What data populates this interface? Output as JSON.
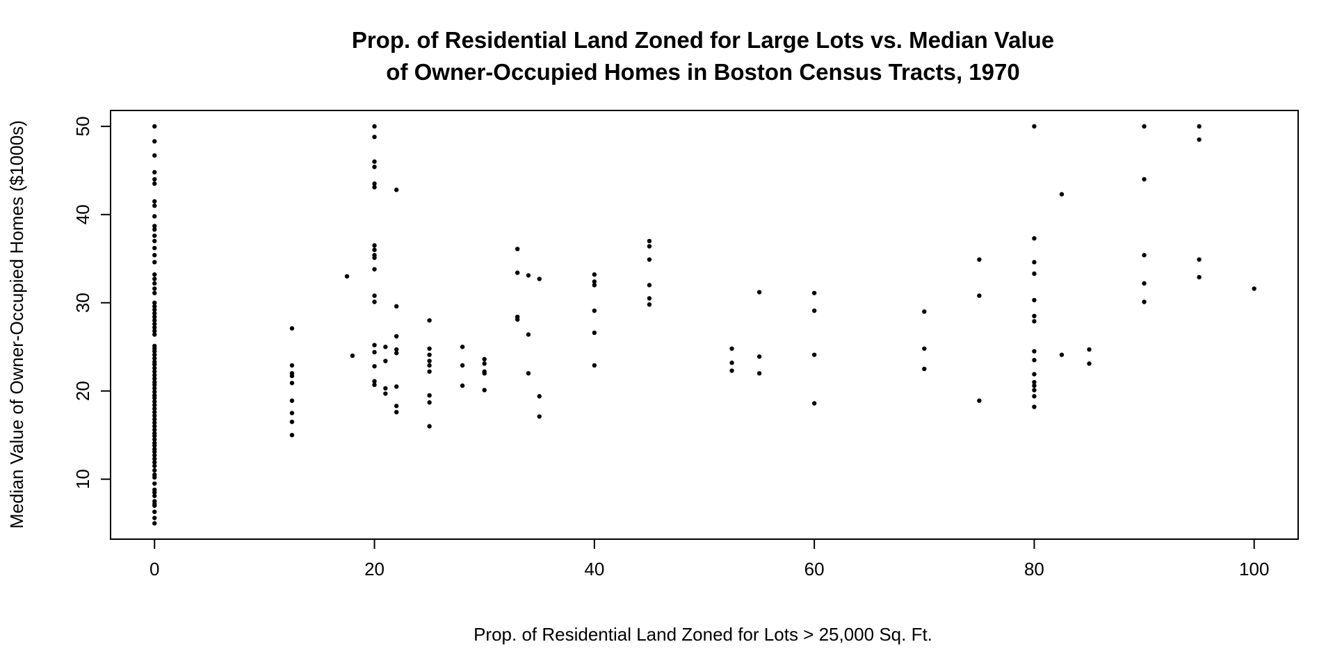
{
  "chart_data": {
    "type": "scatter",
    "title_lines": [
      "Prop. of Residential Land Zoned for Large Lots vs. Median Value",
      "of Owner-Occupied Homes in Boston Census Tracts, 1970"
    ],
    "xlabel": "Prop. of Residential Land Zoned for Lots > 25,000 Sq. Ft.",
    "ylabel": "Median Value of Owner-Occupied Homes ($1000s)",
    "xlim": [
      -4,
      104
    ],
    "ylim": [
      3.2,
      51.8
    ],
    "x_ticks": [
      0,
      20,
      40,
      60,
      80,
      100
    ],
    "y_ticks": [
      10,
      20,
      30,
      40,
      50
    ],
    "grid": false,
    "point_color": "#000000",
    "points": [
      [
        0,
        5.0
      ],
      [
        0,
        5.6
      ],
      [
        0,
        6.3
      ],
      [
        0,
        7.0
      ],
      [
        0,
        7.2
      ],
      [
        0,
        7.5
      ],
      [
        0,
        8.1
      ],
      [
        0,
        8.5
      ],
      [
        0,
        8.8
      ],
      [
        0,
        9.5
      ],
      [
        0,
        10.2
      ],
      [
        0,
        10.5
      ],
      [
        0,
        11.0
      ],
      [
        0,
        11.5
      ],
      [
        0,
        11.9
      ],
      [
        0,
        12.3
      ],
      [
        0,
        12.7
      ],
      [
        0,
        13.1
      ],
      [
        0,
        13.4
      ],
      [
        0,
        13.8
      ],
      [
        0,
        14.1
      ],
      [
        0,
        14.5
      ],
      [
        0,
        14.9
      ],
      [
        0,
        15.2
      ],
      [
        0,
        15.6
      ],
      [
        0,
        16.0
      ],
      [
        0,
        16.4
      ],
      [
        0,
        16.8
      ],
      [
        0,
        17.2
      ],
      [
        0,
        17.6
      ],
      [
        0,
        18.0
      ],
      [
        0,
        18.4
      ],
      [
        0,
        18.8
      ],
      [
        0,
        19.2
      ],
      [
        0,
        19.5
      ],
      [
        0,
        19.9
      ],
      [
        0,
        20.3
      ],
      [
        0,
        20.7
      ],
      [
        0,
        21.0
      ],
      [
        0,
        21.4
      ],
      [
        0,
        21.8
      ],
      [
        0,
        22.2
      ],
      [
        0,
        22.6
      ],
      [
        0,
        23.0
      ],
      [
        0,
        23.3
      ],
      [
        0,
        23.7
      ],
      [
        0,
        24.1
      ],
      [
        0,
        24.5
      ],
      [
        0,
        24.8
      ],
      [
        0,
        25.1
      ],
      [
        0,
        26.4
      ],
      [
        0,
        26.8
      ],
      [
        0,
        27.2
      ],
      [
        0,
        27.6
      ],
      [
        0,
        28.0
      ],
      [
        0,
        28.4
      ],
      [
        0,
        28.8
      ],
      [
        0,
        29.2
      ],
      [
        0,
        29.6
      ],
      [
        0,
        30.0
      ],
      [
        0,
        31.1
      ],
      [
        0,
        31.6
      ],
      [
        0,
        32.2
      ],
      [
        0,
        32.7
      ],
      [
        0,
        33.2
      ],
      [
        0,
        34.6
      ],
      [
        0,
        35.4
      ],
      [
        0,
        36.2
      ],
      [
        0,
        37.0
      ],
      [
        0,
        37.6
      ],
      [
        0,
        38.3
      ],
      [
        0,
        38.7
      ],
      [
        0,
        39.8
      ],
      [
        0,
        41.0
      ],
      [
        0,
        41.5
      ],
      [
        0,
        43.5
      ],
      [
        0,
        44.0
      ],
      [
        0,
        44.8
      ],
      [
        0,
        46.7
      ],
      [
        0,
        48.3
      ],
      [
        0,
        50.0
      ],
      [
        12.5,
        15.0
      ],
      [
        12.5,
        16.5
      ],
      [
        12.5,
        17.5
      ],
      [
        12.5,
        18.9
      ],
      [
        12.5,
        20.9
      ],
      [
        12.5,
        21.7
      ],
      [
        12.5,
        22.0
      ],
      [
        12.5,
        22.9
      ],
      [
        12.5,
        27.1
      ],
      [
        17.5,
        33.0
      ],
      [
        18,
        24.0
      ],
      [
        20,
        20.7
      ],
      [
        20,
        21.1
      ],
      [
        20,
        22.8
      ],
      [
        20,
        24.4
      ],
      [
        20,
        25.2
      ],
      [
        20,
        30.1
      ],
      [
        20,
        30.8
      ],
      [
        20,
        33.8
      ],
      [
        20,
        35.1
      ],
      [
        20,
        35.4
      ],
      [
        20,
        36.0
      ],
      [
        20,
        36.5
      ],
      [
        20,
        43.1
      ],
      [
        20,
        43.5
      ],
      [
        20,
        45.4
      ],
      [
        20,
        46.0
      ],
      [
        20,
        48.8
      ],
      [
        20,
        50.0
      ],
      [
        21,
        19.7
      ],
      [
        21,
        20.3
      ],
      [
        21,
        23.4
      ],
      [
        21,
        25.0
      ],
      [
        22,
        17.6
      ],
      [
        22,
        18.3
      ],
      [
        22,
        20.5
      ],
      [
        22,
        24.3
      ],
      [
        22,
        24.7
      ],
      [
        22,
        26.2
      ],
      [
        22,
        29.6
      ],
      [
        22,
        42.8
      ],
      [
        25,
        16.0
      ],
      [
        25,
        18.7
      ],
      [
        25,
        19.5
      ],
      [
        25,
        22.2
      ],
      [
        25,
        22.9
      ],
      [
        25,
        23.4
      ],
      [
        25,
        24.1
      ],
      [
        25,
        24.8
      ],
      [
        25,
        28.0
      ],
      [
        28,
        20.6
      ],
      [
        28,
        22.9
      ],
      [
        28,
        25.0
      ],
      [
        30,
        20.1
      ],
      [
        30,
        22.0
      ],
      [
        30,
        22.2
      ],
      [
        30,
        23.1
      ],
      [
        30,
        23.6
      ],
      [
        33,
        28.1
      ],
      [
        33,
        28.4
      ],
      [
        33,
        33.4
      ],
      [
        33,
        36.1
      ],
      [
        34,
        22.0
      ],
      [
        34,
        26.4
      ],
      [
        34,
        33.1
      ],
      [
        35,
        17.1
      ],
      [
        35,
        19.4
      ],
      [
        35,
        32.7
      ],
      [
        40,
        22.9
      ],
      [
        40,
        26.6
      ],
      [
        40,
        29.1
      ],
      [
        40,
        32.0
      ],
      [
        40,
        32.4
      ],
      [
        40,
        33.2
      ],
      [
        45,
        29.8
      ],
      [
        45,
        30.5
      ],
      [
        45,
        32.0
      ],
      [
        45,
        34.9
      ],
      [
        45,
        36.4
      ],
      [
        45,
        37.0
      ],
      [
        52.5,
        22.3
      ],
      [
        52.5,
        23.2
      ],
      [
        52.5,
        24.8
      ],
      [
        55,
        22.0
      ],
      [
        55,
        23.9
      ],
      [
        55,
        31.2
      ],
      [
        60,
        18.6
      ],
      [
        60,
        24.1
      ],
      [
        60,
        29.1
      ],
      [
        60,
        31.1
      ],
      [
        70,
        22.5
      ],
      [
        70,
        24.8
      ],
      [
        70,
        29.0
      ],
      [
        75,
        18.9
      ],
      [
        75,
        30.8
      ],
      [
        75,
        34.9
      ],
      [
        80,
        18.2
      ],
      [
        80,
        19.4
      ],
      [
        80,
        20.1
      ],
      [
        80,
        20.6
      ],
      [
        80,
        21.0
      ],
      [
        80,
        21.9
      ],
      [
        80,
        23.5
      ],
      [
        80,
        24.5
      ],
      [
        80,
        27.9
      ],
      [
        80,
        28.5
      ],
      [
        80,
        30.3
      ],
      [
        80,
        33.3
      ],
      [
        80,
        34.6
      ],
      [
        80,
        37.3
      ],
      [
        80,
        50.0
      ],
      [
        82.5,
        24.1
      ],
      [
        82.5,
        42.3
      ],
      [
        85,
        23.1
      ],
      [
        85,
        24.7
      ],
      [
        90,
        30.1
      ],
      [
        90,
        32.2
      ],
      [
        90,
        35.4
      ],
      [
        90,
        44.0
      ],
      [
        90,
        50.0
      ],
      [
        95,
        32.9
      ],
      [
        95,
        34.9
      ],
      [
        95,
        48.5
      ],
      [
        95,
        50.0
      ],
      [
        100,
        31.6
      ]
    ]
  }
}
